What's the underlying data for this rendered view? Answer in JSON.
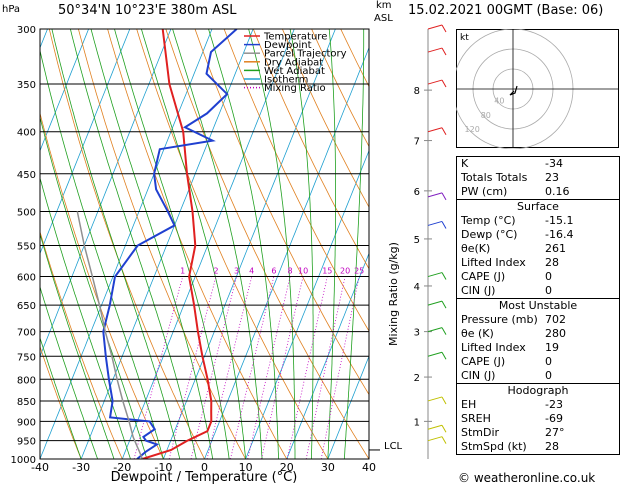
{
  "header": {
    "pressure_unit": "hPa",
    "location": "50°34'N  10°23'E  380m  ASL",
    "height_unit_1": "km",
    "height_unit_2": "ASL",
    "datetime": "15.02.2021  00GMT  (Base: 06)"
  },
  "chart_data": {
    "type": "line",
    "xlabel": "Dewpoint / Temperature (°C)",
    "ylabel_right": "Mixing Ratio (g/kg)",
    "xlim": [
      -40,
      40
    ],
    "ylim": [
      1000,
      300
    ],
    "y_scale": "log",
    "x_ticks": [
      "-40",
      "-30",
      "-20",
      "-10",
      "0",
      "10",
      "20",
      "30",
      "40"
    ],
    "y_ticks": [
      "300",
      "350",
      "400",
      "450",
      "500",
      "550",
      "600",
      "650",
      "700",
      "750",
      "800",
      "850",
      "900",
      "950",
      "1000"
    ],
    "mixing_ratio_labels": [
      "1",
      "2",
      "3",
      "4",
      "6",
      "8",
      "10",
      "15",
      "20",
      "25"
    ],
    "km_ticks": [
      "8",
      "7",
      "6",
      "5",
      "4",
      "3",
      "2",
      "1"
    ],
    "lcl_label": "LCL",
    "legend": [
      {
        "name": "Temperature",
        "color": "#e02020",
        "style": "solid"
      },
      {
        "name": "Dewpoint",
        "color": "#2040d0",
        "style": "solid"
      },
      {
        "name": "Parcel Trajectory",
        "color": "#909090",
        "style": "solid"
      },
      {
        "name": "Dry Adiabat",
        "color": "#e08020",
        "style": "solid"
      },
      {
        "name": "Wet Adiabat",
        "color": "#20a020",
        "style": "solid"
      },
      {
        "name": "Isotherm",
        "color": "#20a0d0",
        "style": "solid"
      },
      {
        "name": "Mixing Ratio",
        "color": "#c000c0",
        "style": "dotted"
      }
    ],
    "series": [
      {
        "name": "Temperature",
        "points": [
          [
            1000,
            -15.1
          ],
          [
            975,
            -9
          ],
          [
            950,
            -6
          ],
          [
            925,
            -2
          ],
          [
            900,
            -2
          ],
          [
            875,
            -3
          ],
          [
            850,
            -4
          ],
          [
            800,
            -7
          ],
          [
            750,
            -10.5
          ],
          [
            700,
            -14
          ],
          [
            650,
            -17.5
          ],
          [
            600,
            -21.5
          ],
          [
            550,
            -23
          ],
          [
            500,
            -27
          ],
          [
            450,
            -32
          ],
          [
            400,
            -37
          ],
          [
            350,
            -45
          ],
          [
            300,
            -52
          ]
        ]
      },
      {
        "name": "Dewpoint",
        "points": [
          [
            1000,
            -16.4
          ],
          [
            980,
            -15
          ],
          [
            960,
            -13
          ],
          [
            950,
            -16
          ],
          [
            940,
            -17
          ],
          [
            920,
            -15
          ],
          [
            900,
            -17
          ],
          [
            890,
            -27
          ],
          [
            870,
            -27.5
          ],
          [
            850,
            -28
          ],
          [
            800,
            -31
          ],
          [
            750,
            -34
          ],
          [
            700,
            -37
          ],
          [
            650,
            -38
          ],
          [
            600,
            -39.5
          ],
          [
            550,
            -37
          ],
          [
            520,
            -30
          ],
          [
            500,
            -33
          ],
          [
            470,
            -38
          ],
          [
            450,
            -40
          ],
          [
            420,
            -41
          ],
          [
            410,
            -29
          ],
          [
            395,
            -37
          ],
          [
            380,
            -33
          ],
          [
            360,
            -30
          ],
          [
            340,
            -37
          ],
          [
            320,
            -38
          ],
          [
            300,
            -34
          ]
        ]
      },
      {
        "name": "Parcel Trajectory",
        "points": [
          [
            1000,
            -15.1
          ],
          [
            980,
            -16.5
          ],
          [
            960,
            -18
          ],
          [
            940,
            -19.5
          ],
          [
            900,
            -22
          ],
          [
            850,
            -25.5
          ],
          [
            800,
            -29
          ],
          [
            750,
            -32.5
          ],
          [
            700,
            -36.5
          ],
          [
            650,
            -40.5
          ],
          [
            600,
            -45
          ],
          [
            550,
            -50
          ],
          [
            500,
            -55
          ]
        ]
      }
    ],
    "indices": [
      {
        "label": "K",
        "value": "-34"
      },
      {
        "label": "Totals Totals",
        "value": "23"
      },
      {
        "label": "PW (cm)",
        "value": "0.16"
      }
    ],
    "surface": {
      "title": "Surface",
      "rows": [
        {
          "label": "Temp (°C)",
          "value": "-15.1"
        },
        {
          "label": "Dewp (°C)",
          "value": "-16.4"
        },
        {
          "label": "θe(K)",
          "value": "261"
        },
        {
          "label": "Lifted Index",
          "value": "28"
        },
        {
          "label": "CAPE (J)",
          "value": "0"
        },
        {
          "label": "CIN (J)",
          "value": "0"
        }
      ]
    },
    "most_unstable": {
      "title": "Most Unstable",
      "rows": [
        {
          "label": "Pressure (mb)",
          "value": "702"
        },
        {
          "label": "θe (K)",
          "value": "280"
        },
        {
          "label": "Lifted Index",
          "value": "19"
        },
        {
          "label": "CAPE (J)",
          "value": "0"
        },
        {
          "label": "CIN (J)",
          "value": "0"
        }
      ]
    },
    "hodograph": {
      "title": "Hodograph",
      "label": "kt",
      "ring_labels": [
        "40",
        "80",
        "120"
      ],
      "rows": [
        {
          "label": "EH",
          "value": "-23"
        },
        {
          "label": "SREH",
          "value": "-69"
        },
        {
          "label": "StmDir",
          "value": "27°"
        },
        {
          "label": "StmSpd (kt)",
          "value": "28"
        }
      ]
    }
  },
  "footer": {
    "credit": "© weatheronline.co.uk"
  }
}
